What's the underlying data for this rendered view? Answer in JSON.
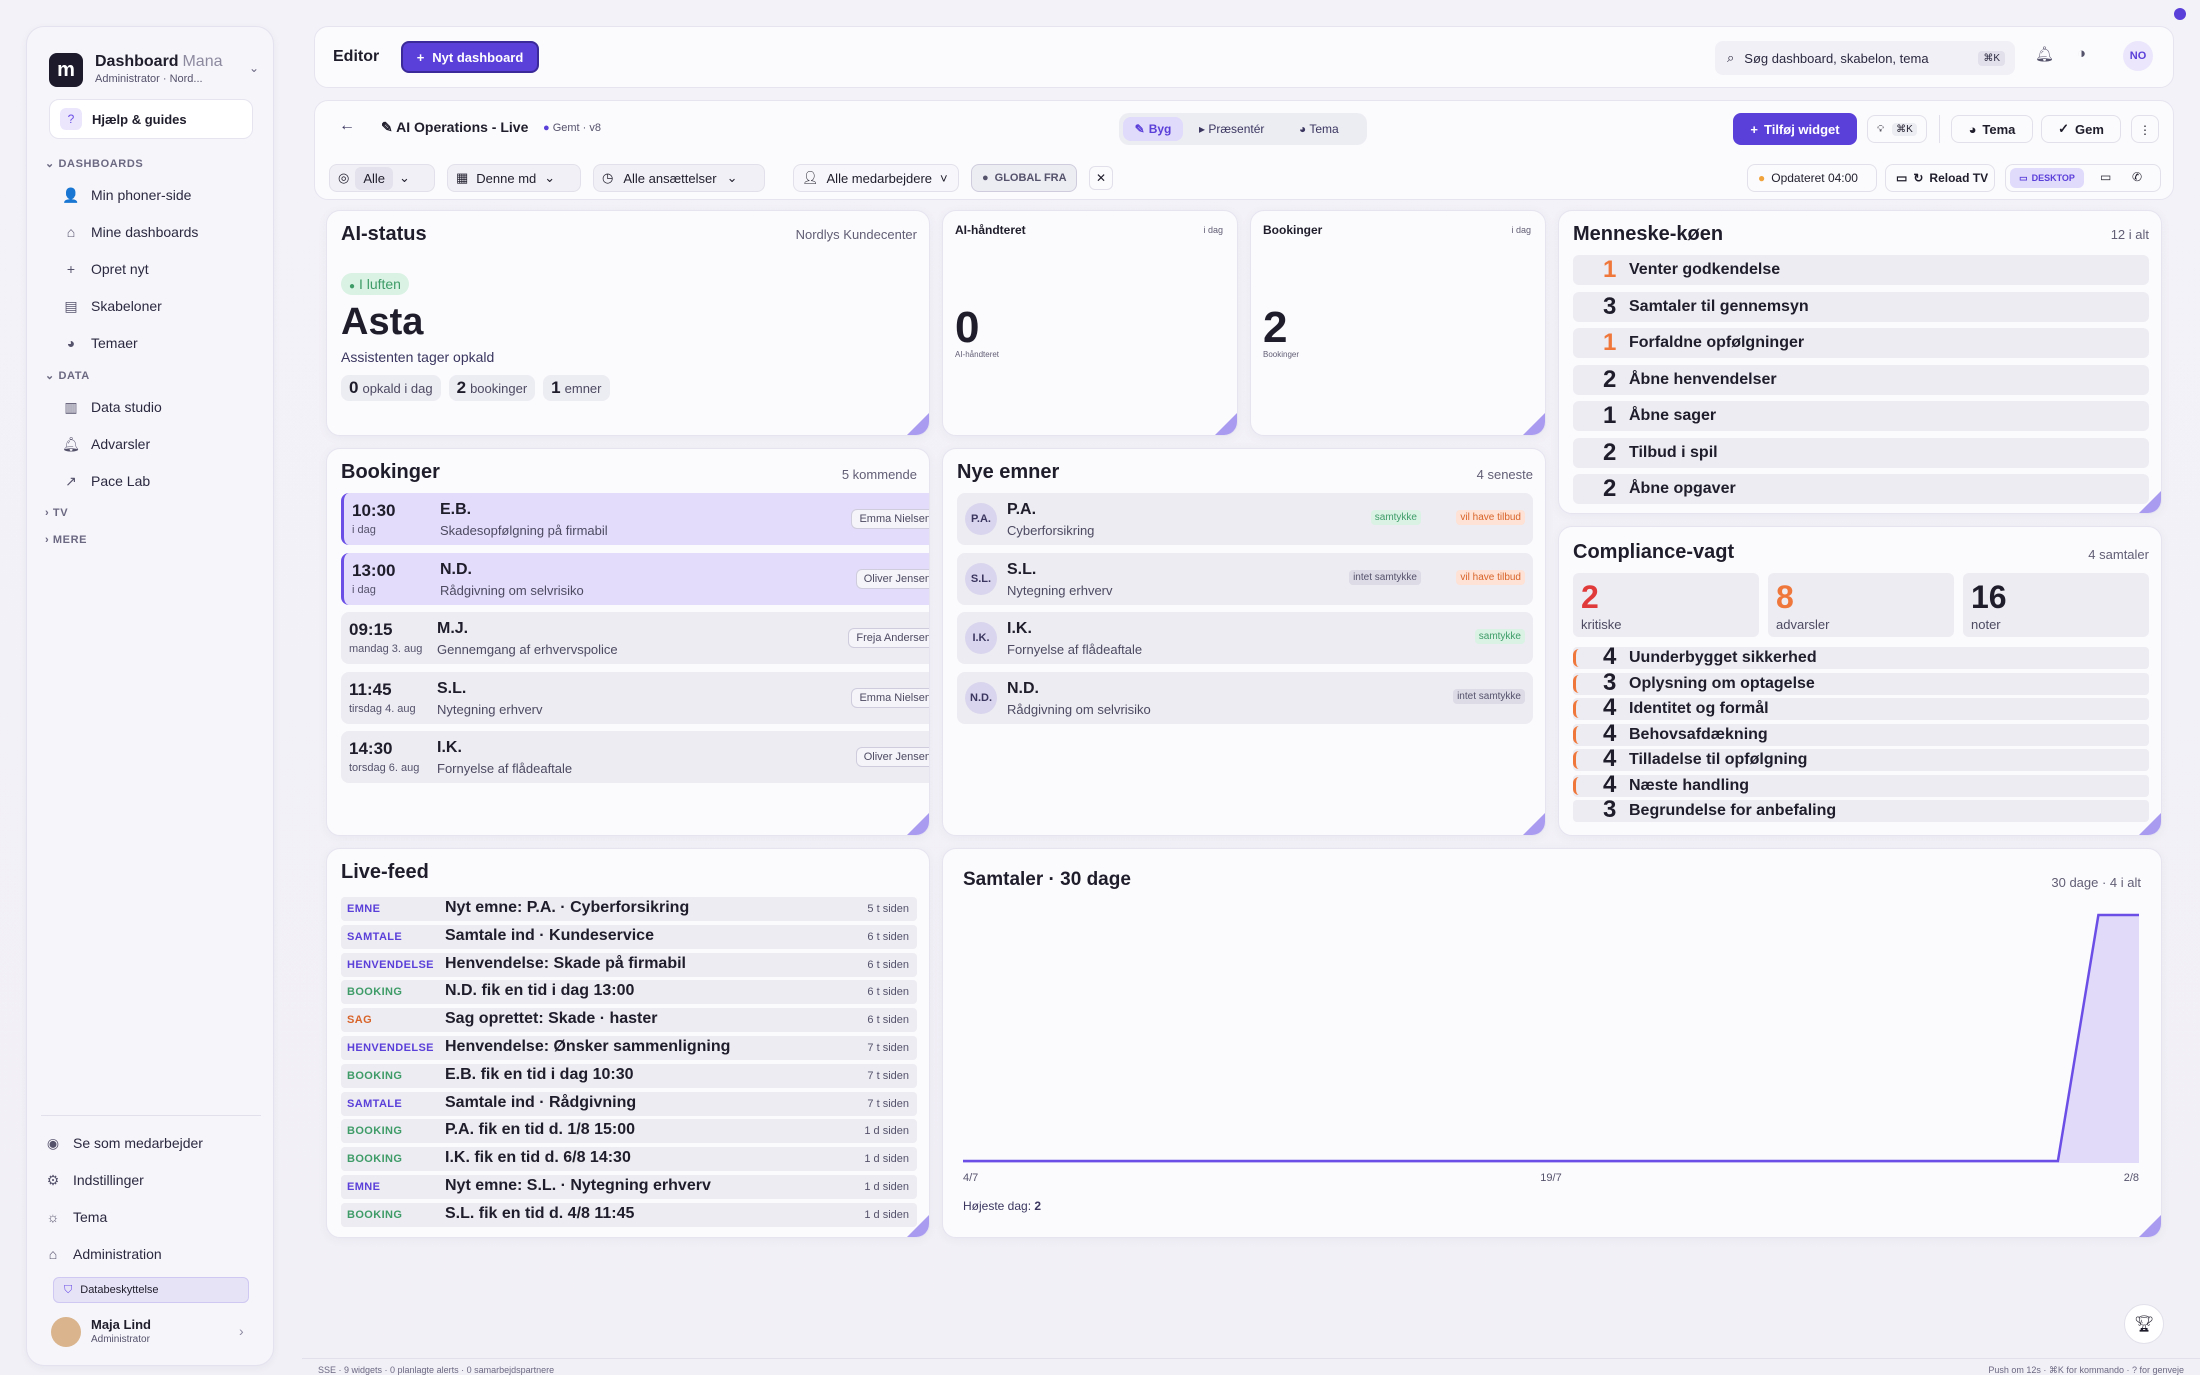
{
  "sidebar": {
    "brand_title": "Dashboard",
    "brand_title_faded": "Mana",
    "brand_subtitle": "Administrator · Nord...",
    "help": "Hjælp & guides",
    "section_dashboards": "DASHBOARDS",
    "section_data": "DATA",
    "section_tv": "TV",
    "section_more": "MERE",
    "dashboards_items": [
      "Min phoner-side",
      "Mine dashboards",
      "Opret nyt",
      "Skabeloner",
      "Temaer"
    ],
    "data_items": [
      "Data studio",
      "Advarsler",
      "Pace Lab"
    ],
    "bottom_items": [
      "Se som medarbejder",
      "Indstillinger",
      "Tema",
      "Administration"
    ],
    "privacy": "Databeskyttelse",
    "user_name": "Maja Lind",
    "user_role": "Administrator"
  },
  "topbar": {
    "title": "Editor",
    "new_dashboard": "Nyt dashboard",
    "search_placeholder": "Søg dashboard, skabelon, tema",
    "search_shortcut": "⌘K",
    "avatar": "NO"
  },
  "toolbar": {
    "dashboard_name": "AI Operations - Live",
    "saved": "Gemt · v8",
    "mode_build": "Byg",
    "mode_present": "Præsentér",
    "mode_theme": "Tema",
    "add_widget": "Tilføj widget",
    "shortcut": "⌘K",
    "theme": "Tema",
    "save": "Gem"
  },
  "filters": {
    "all": "Alle",
    "period": "Denne md",
    "employments": "Alle ansættelser",
    "employees": "Alle medarbejdere",
    "global": "GLOBAL FRA",
    "updated": "Opdateret 04:00",
    "reload": "Reload TV",
    "desktop": "DESKTOP"
  },
  "ai_status": {
    "title": "AI-status",
    "center": "Nordlys Kundecenter",
    "badge": "I luften",
    "name": "Asta",
    "sub": "Assistenten tager opkald",
    "stats": [
      {
        "num": "0",
        "lbl": "opkald i dag"
      },
      {
        "num": "2",
        "lbl": "bookinger"
      },
      {
        "num": "1",
        "lbl": "emner"
      }
    ]
  },
  "kpi_ai": {
    "title": "AI-håndteret",
    "period": "i dag",
    "value": "0",
    "label": "AI-håndteret"
  },
  "kpi_book": {
    "title": "Bookinger",
    "period": "i dag",
    "value": "2",
    "label": "Bookinger"
  },
  "queue": {
    "title": "Menneske-køen",
    "meta": "12 i alt",
    "items": [
      {
        "num": "1",
        "lbl": "Venter godkendelse",
        "color": "#f0773b"
      },
      {
        "num": "3",
        "lbl": "Samtaler til gennemsyn",
        "color": "#1f1d2b"
      },
      {
        "num": "1",
        "lbl": "Forfaldne opfølgninger",
        "color": "#f0773b"
      },
      {
        "num": "2",
        "lbl": "Åbne henvendelser",
        "color": "#1f1d2b"
      },
      {
        "num": "1",
        "lbl": "Åbne sager",
        "color": "#1f1d2b"
      },
      {
        "num": "2",
        "lbl": "Tilbud i spil",
        "color": "#1f1d2b"
      },
      {
        "num": "2",
        "lbl": "Åbne opgaver",
        "color": "#1f1d2b"
      }
    ]
  },
  "bookings": {
    "title": "Bookinger",
    "meta": "5 kommende",
    "items": [
      {
        "time": "10:30",
        "day": "i dag",
        "name": "E.B.",
        "desc": "Skadesopfølgning på firmabil",
        "agent": "Emma Nielsen"
      },
      {
        "time": "13:00",
        "day": "i dag",
        "name": "N.D.",
        "desc": "Rådgivning om selvrisiko",
        "agent": "Oliver Jensen"
      },
      {
        "time": "09:15",
        "day": "mandag 3. aug",
        "name": "M.J.",
        "desc": "Gennemgang af erhvervspolice",
        "agent": "Freja Andersen"
      },
      {
        "time": "11:45",
        "day": "tirsdag 4. aug",
        "name": "S.L.",
        "desc": "Nytegning erhverv",
        "agent": "Emma Nielsen"
      },
      {
        "time": "14:30",
        "day": "torsdag 6. aug",
        "name": "I.K.",
        "desc": "Fornyelse af flådeaftale",
        "agent": "Oliver Jensen"
      }
    ]
  },
  "leads": {
    "title": "Nye emner",
    "meta": "4 seneste",
    "items": [
      {
        "ini": "P.A.",
        "name": "P.A.",
        "desc": "Cyberforsikring",
        "tags": [
          {
            "t": "samtykke",
            "c": "g"
          },
          {
            "t": "vil have tilbud",
            "c": "o"
          }
        ]
      },
      {
        "ini": "S.L.",
        "name": "S.L.",
        "desc": "Nytegning erhverv",
        "tags": [
          {
            "t": "intet samtykke",
            "c": "n"
          },
          {
            "t": "vil have tilbud",
            "c": "o"
          }
        ]
      },
      {
        "ini": "I.K.",
        "name": "I.K.",
        "desc": "Fornyelse af flådeaftale",
        "tags": [
          {
            "t": "samtykke",
            "c": "g"
          }
        ]
      },
      {
        "ini": "N.D.",
        "name": "N.D.",
        "desc": "Rådgivning om selvrisiko",
        "tags": [
          {
            "t": "intet samtykke",
            "c": "n"
          }
        ]
      }
    ]
  },
  "compliance": {
    "title": "Compliance-vagt",
    "meta": "4 samtaler",
    "stats": [
      {
        "num": "2",
        "lbl": "kritiske",
        "color": "#e03a3a"
      },
      {
        "num": "8",
        "lbl": "advarsler",
        "color": "#f0773b"
      },
      {
        "num": "16",
        "lbl": "noter",
        "color": "#1f1d2b"
      }
    ],
    "items": [
      {
        "num": "4",
        "lbl": "Uunderbygget sikkerhed"
      },
      {
        "num": "3",
        "lbl": "Oplysning om optagelse"
      },
      {
        "num": "4",
        "lbl": "Identitet og formål"
      },
      {
        "num": "4",
        "lbl": "Behovsafdækning"
      },
      {
        "num": "4",
        "lbl": "Tilladelse til opfølgning"
      },
      {
        "num": "4",
        "lbl": "Næste handling"
      },
      {
        "num": "3",
        "lbl": "Begrundelse for anbefaling"
      }
    ]
  },
  "feed": {
    "title": "Live-feed",
    "items": [
      {
        "type": "EMNE",
        "color": "#5b3fd9",
        "text": "Nyt emne: P.A. · Cyberforsikring",
        "time": "5 t siden"
      },
      {
        "type": "SAMTALE",
        "color": "#5b3fd9",
        "text": "Samtale ind · Kundeservice",
        "time": "6 t siden"
      },
      {
        "type": "HENVENDELSE",
        "color": "#5b3fd9",
        "text": "Henvendelse: Skade på firmabil",
        "time": "6 t siden"
      },
      {
        "type": "BOOKING",
        "color": "#3f9c68",
        "text": "N.D. fik en tid i dag 13:00",
        "time": "6 t siden"
      },
      {
        "type": "SAG",
        "color": "#d9642a",
        "text": "Sag oprettet: Skade · haster",
        "time": "6 t siden"
      },
      {
        "type": "HENVENDELSE",
        "color": "#5b3fd9",
        "text": "Henvendelse: Ønsker sammenligning",
        "time": "7 t siden"
      },
      {
        "type": "BOOKING",
        "color": "#3f9c68",
        "text": "E.B. fik en tid i dag 10:30",
        "time": "7 t siden"
      },
      {
        "type": "SAMTALE",
        "color": "#5b3fd9",
        "text": "Samtale ind · Rådgivning",
        "time": "7 t siden"
      },
      {
        "type": "BOOKING",
        "color": "#3f9c68",
        "text": "P.A. fik en tid d. 1/8 15:00",
        "time": "1 d siden"
      },
      {
        "type": "BOOKING",
        "color": "#3f9c68",
        "text": "I.K. fik en tid d. 6/8 14:30",
        "time": "1 d siden"
      },
      {
        "type": "EMNE",
        "color": "#5b3fd9",
        "text": "Nyt emne: S.L. · Nytegning erhverv",
        "time": "1 d siden"
      },
      {
        "type": "BOOKING",
        "color": "#3f9c68",
        "text": "S.L. fik en tid d. 4/8 11:45",
        "time": "1 d siden"
      }
    ]
  },
  "conversations": {
    "title": "Samtaler · 30 dage",
    "meta": "30 dage · 4 i alt",
    "peak_label": "Højeste dag:",
    "peak_value": "2"
  },
  "chart_data": {
    "type": "area",
    "title": "Samtaler · 30 dage",
    "x_ticks": [
      "4/7",
      "19/7",
      "2/8"
    ],
    "values": [
      0,
      0,
      0,
      0,
      0,
      0,
      0,
      0,
      0,
      0,
      0,
      0,
      0,
      0,
      0,
      0,
      0,
      0,
      0,
      0,
      0,
      0,
      0,
      0,
      0,
      0,
      0,
      0,
      2,
      2
    ],
    "ylim": [
      0,
      2
    ],
    "color": "#6b4ee6"
  },
  "statusbar": {
    "left": "SSE · 9 widgets · 0 planlagte alerts · 0 samarbejdspartnere",
    "right": "Push om 12s · ⌘K for kommando · ? for genveje"
  }
}
